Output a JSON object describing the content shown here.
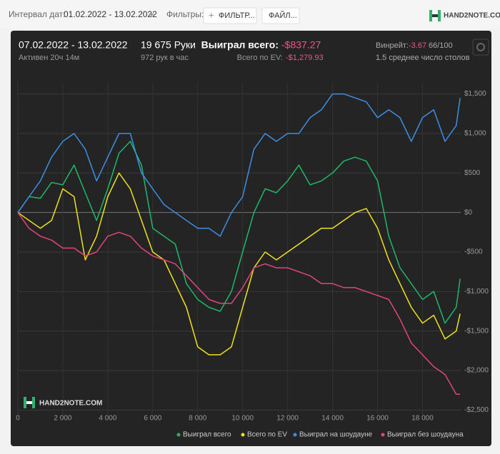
{
  "toolbar": {
    "date_label": "Интервал дат:",
    "date_range": "01.02.2022 - 13.02.2022",
    "filters_label": "Фильтры:",
    "filter_button": "ФИЛЬТР...",
    "file_button": "ФАЙЛ...",
    "logo": "HAND2NOTE.COM"
  },
  "stats": {
    "period": "07.02.2022 - 13.02.2022",
    "active": "Активен 20ч 14м",
    "hands": "19 675 Руки",
    "hands_per_hour": "972 рук в час",
    "won_label": "Выиграл всего:",
    "won_value": "-$837.27",
    "ev_label": "Всего по EV:",
    "ev_value": "-$1,279.93",
    "winrate_label": "Винрейт:",
    "winrate_value": "-3.67",
    "winrate_unit": "66/100",
    "tables": "1.5 среднее число столов"
  },
  "chart_data": {
    "type": "line",
    "watermark": "HAND2NOTE.COM",
    "grid": true,
    "x": [
      0,
      500,
      1000,
      1500,
      2000,
      2500,
      3000,
      3500,
      4000,
      4500,
      5000,
      5500,
      6000,
      6500,
      7000,
      7500,
      8000,
      8500,
      9000,
      9500,
      10000,
      10500,
      11000,
      11500,
      12000,
      12500,
      13000,
      13500,
      14000,
      14500,
      15000,
      15500,
      16000,
      16500,
      17000,
      17500,
      18000,
      18500,
      19000,
      19500,
      19675
    ],
    "xlim": [
      0,
      19700
    ],
    "xticks": [
      0,
      {
        "value": 2000,
        "label": "2 000"
      },
      {
        "value": 4000,
        "label": "4 000"
      },
      {
        "value": 6000,
        "label": "6 000"
      },
      {
        "value": 8000,
        "label": "8 000"
      },
      {
        "value": 10000,
        "label": "10 000"
      },
      {
        "value": 12000,
        "label": "12 000"
      },
      {
        "value": 14000,
        "label": "14 000"
      },
      {
        "value": 16000,
        "label": "16 000"
      },
      {
        "value": 18000,
        "label": "18 000"
      }
    ],
    "ylim": [
      -2550,
      1650
    ],
    "yticks": [
      {
        "value": 1500,
        "label": "$1,500"
      },
      {
        "value": 1000,
        "label": "$1,000"
      },
      {
        "value": 500,
        "label": "$500"
      },
      {
        "value": 0,
        "label": "$0"
      },
      {
        "value": -500,
        "label": "-$500"
      },
      {
        "value": -1000,
        "label": "-$1,000"
      },
      {
        "value": -1500,
        "label": "-$1,500"
      },
      {
        "value": -2000,
        "label": "-$2,000"
      },
      {
        "value": -2500,
        "label": "-$2,500"
      }
    ],
    "series": [
      {
        "name": "Выиграл всего",
        "color": "#1fb86a",
        "values": [
          0,
          200,
          180,
          380,
          350,
          600,
          250,
          -100,
          300,
          750,
          900,
          600,
          -200,
          -300,
          -400,
          -900,
          -1100,
          -1200,
          -1250,
          -1000,
          -500,
          0,
          300,
          250,
          400,
          600,
          350,
          400,
          500,
          650,
          700,
          650,
          400,
          -300,
          -700,
          -900,
          -1100,
          -1000,
          -1400,
          -1200,
          -837
        ]
      },
      {
        "name": "Всего по EV",
        "color": "#eee21c",
        "values": [
          0,
          -100,
          -200,
          -100,
          300,
          200,
          -600,
          -300,
          200,
          500,
          300,
          -100,
          -500,
          -600,
          -900,
          -1200,
          -1700,
          -1800,
          -1800,
          -1700,
          -1200,
          -700,
          -500,
          -600,
          -500,
          -400,
          -300,
          -200,
          -200,
          -100,
          0,
          50,
          -200,
          -600,
          -900,
          -1200,
          -1400,
          -1300,
          -1600,
          -1500,
          -1280
        ]
      },
      {
        "name": "Выиграл на шоудауне",
        "color": "#3d8fe4",
        "values": [
          0,
          200,
          400,
          700,
          900,
          1000,
          800,
          400,
          700,
          1000,
          1000,
          500,
          300,
          100,
          0,
          -100,
          -200,
          -200,
          -300,
          0,
          200,
          800,
          1000,
          900,
          1000,
          1000,
          1200,
          1300,
          1500,
          1500,
          1450,
          1400,
          1200,
          1300,
          1200,
          900,
          1200,
          1300,
          900,
          1100,
          1450
        ]
      },
      {
        "name": "Выиграл без шоудауна",
        "color": "#e2457c",
        "values": [
          0,
          -200,
          -300,
          -350,
          -450,
          -450,
          -550,
          -500,
          -300,
          -250,
          -300,
          -450,
          -550,
          -600,
          -650,
          -800,
          -950,
          -1100,
          -1150,
          -1150,
          -950,
          -700,
          -650,
          -700,
          -700,
          -750,
          -800,
          -900,
          -900,
          -950,
          -950,
          -1000,
          -1050,
          -1100,
          -1350,
          -1650,
          -1800,
          -1950,
          -2050,
          -2300,
          -2300
        ]
      }
    ]
  }
}
